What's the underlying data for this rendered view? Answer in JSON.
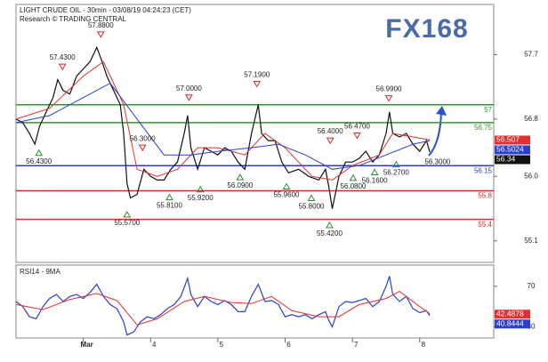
{
  "chart_data": [
    {
      "type": "line",
      "title": "LIGHT CRUDE OIL - 30min - 03/08/19 04:24:23 (CET)",
      "subtitle": "Research © TRADING CENTRAL",
      "logo": "FX168",
      "xlim": [
        2.0,
        9.1
      ],
      "ylim": [
        54.8,
        58.4
      ],
      "yticks": [
        55.1,
        {
          "value": 56,
          "label": "56.0"
        },
        56.8,
        57.7
      ],
      "series": [
        {
          "color": "#111111",
          "x": [
            2.0,
            2.1,
            2.2,
            2.28,
            2.35,
            2.45,
            2.55,
            2.62,
            2.7,
            2.8,
            2.9,
            3.0,
            3.1,
            3.2,
            3.28,
            3.35,
            3.45,
            3.55,
            3.6,
            3.65,
            3.7,
            3.8,
            3.9,
            4.0,
            4.1,
            4.2,
            4.3,
            4.4,
            4.5,
            4.55,
            4.6,
            4.7,
            4.8,
            4.9,
            5.0,
            5.1,
            5.2,
            5.3,
            5.4,
            5.5,
            5.6,
            5.65,
            5.75,
            5.85,
            5.95,
            6.05,
            6.2,
            6.35,
            6.5,
            6.6,
            6.65,
            6.7,
            6.8,
            6.9,
            7.0,
            7.1,
            7.2,
            7.3,
            7.4,
            7.5,
            7.55,
            7.6,
            7.7,
            7.8,
            7.9,
            8.0,
            8.1,
            8.15
          ],
          "values": [
            56.8,
            56.75,
            56.6,
            56.45,
            56.7,
            56.9,
            57.1,
            57.35,
            57.2,
            57.15,
            57.4,
            57.5,
            57.6,
            57.8,
            57.6,
            57.4,
            57.2,
            57.0,
            56.6,
            55.9,
            55.7,
            55.75,
            56.1,
            56.0,
            55.95,
            55.95,
            56.1,
            56.2,
            56.6,
            56.85,
            56.4,
            56.1,
            56.4,
            56.35,
            56.3,
            56.4,
            56.35,
            56.2,
            56.1,
            56.6,
            57.0,
            56.6,
            56.5,
            56.5,
            56.2,
            56.05,
            56.1,
            56.0,
            55.95,
            56.1,
            55.85,
            55.55,
            56.0,
            56.2,
            56.2,
            56.25,
            56.35,
            56.2,
            56.3,
            56.6,
            56.9,
            56.6,
            56.55,
            56.6,
            56.45,
            56.35,
            56.5,
            56.34
          ]
        },
        {
          "color": "#e03030",
          "x": [
            2.0,
            2.5,
            3.0,
            3.3,
            3.6,
            3.8,
            4.1,
            4.4,
            4.7,
            5.0,
            5.4,
            5.7,
            6.0,
            6.4,
            6.7,
            7.0,
            7.4,
            7.6,
            7.9,
            8.15
          ],
          "values": [
            56.8,
            56.95,
            57.4,
            57.6,
            57.0,
            56.1,
            56.0,
            56.1,
            56.4,
            56.4,
            56.3,
            56.6,
            56.4,
            56.0,
            55.95,
            56.15,
            56.3,
            56.6,
            56.55,
            56.51
          ]
        },
        {
          "color": "#2a3fd0",
          "x": [
            2.0,
            2.5,
            3.0,
            3.4,
            3.8,
            4.2,
            4.6,
            5.0,
            5.5,
            5.9,
            6.3,
            6.7,
            7.1,
            7.5,
            7.9,
            8.15
          ],
          "values": [
            56.75,
            56.85,
            57.1,
            57.3,
            56.8,
            56.3,
            56.3,
            56.35,
            56.4,
            56.45,
            56.3,
            56.1,
            56.15,
            56.3,
            56.45,
            56.5
          ]
        }
      ],
      "levels": [
        {
          "value": 57,
          "color": "#2e9a2e"
        },
        {
          "value": 56.75,
          "color": "#2e9a2e"
        },
        {
          "value": 56.15,
          "color": "#2a3fd0"
        },
        {
          "value": 55.8,
          "color": "#d42a2a"
        },
        {
          "value": 55.4,
          "color": "#d42a2a"
        }
      ],
      "last_values": [
        {
          "value": 56.507,
          "color": "#e03030"
        },
        {
          "value": 56.5024,
          "color": "#2a3fd0"
        },
        {
          "value": 56.34,
          "color": "#111111"
        }
      ],
      "annotations": [
        {
          "x": 2.69,
          "value": 57.43,
          "label": "57.4300",
          "marker": "down"
        },
        {
          "x": 3.26,
          "value": 57.88,
          "label": "57.8800",
          "marker": "down"
        },
        {
          "x": 2.34,
          "value": 56.43,
          "label": "56.4300",
          "marker": "up"
        },
        {
          "x": 3.65,
          "value": 55.57,
          "label": "55.5700",
          "marker": "up"
        },
        {
          "x": 3.88,
          "value": 56.3,
          "label": "56.3000",
          "marker": "down"
        },
        {
          "x": 4.28,
          "value": 55.81,
          "label": "55.8100",
          "marker": "up"
        },
        {
          "x": 4.57,
          "value": 57.0,
          "label": "57.0000",
          "marker": "down"
        },
        {
          "x": 4.74,
          "value": 55.92,
          "label": "55.9200",
          "marker": "up"
        },
        {
          "x": 5.33,
          "value": 56.09,
          "label": "56.0900",
          "marker": "up"
        },
        {
          "x": 5.58,
          "value": 57.19,
          "label": "57.1900",
          "marker": "down"
        },
        {
          "x": 6.02,
          "value": 55.96,
          "label": "55.9600",
          "marker": "up"
        },
        {
          "x": 6.39,
          "value": 55.8,
          "label": "55.8000",
          "marker": "up"
        },
        {
          "x": 6.67,
          "value": 56.4,
          "label": "56.4000",
          "marker": "down"
        },
        {
          "x": 6.66,
          "value": 55.42,
          "label": "55.4200",
          "marker": "up"
        },
        {
          "x": 7.07,
          "value": 56.47,
          "label": "56.4700",
          "marker": "down"
        },
        {
          "x": 7.01,
          "value": 56.08,
          "label": "56.0800",
          "marker": "up"
        },
        {
          "x": 7.54,
          "value": 56.99,
          "label": "56.9900",
          "marker": "down"
        },
        {
          "x": 7.33,
          "value": 56.16,
          "label": "56.1600",
          "marker": "up"
        },
        {
          "x": 7.65,
          "value": 56.27,
          "label": "56.2700",
          "marker": "up"
        },
        {
          "x": 8.16,
          "value": 56.3,
          "label": "56.3000"
        }
      ]
    },
    {
      "type": "line",
      "title": "RSI14 - 9MA",
      "xlim": [
        2.0,
        9.1
      ],
      "xticks": [
        {
          "value": 3,
          "label": "Mar"
        },
        4,
        5,
        6,
        7,
        8
      ],
      "ylim": [
        19,
        91
      ],
      "yticks": [
        30,
        70
      ],
      "series": [
        {
          "color": "#2a3fd0",
          "x": [
            2.0,
            2.1,
            2.2,
            2.3,
            2.4,
            2.5,
            2.6,
            2.7,
            2.8,
            2.9,
            3.0,
            3.1,
            3.2,
            3.3,
            3.4,
            3.5,
            3.6,
            3.65,
            3.75,
            3.85,
            3.95,
            4.05,
            4.15,
            4.25,
            4.35,
            4.45,
            4.55,
            4.6,
            4.7,
            4.8,
            4.9,
            5.0,
            5.1,
            5.2,
            5.3,
            5.4,
            5.5,
            5.6,
            5.7,
            5.8,
            5.9,
            6.0,
            6.1,
            6.2,
            6.3,
            6.4,
            6.5,
            6.6,
            6.65,
            6.7,
            6.8,
            6.9,
            7.0,
            7.1,
            7.2,
            7.3,
            7.4,
            7.5,
            7.55,
            7.6,
            7.7,
            7.8,
            7.9,
            8.0,
            8.1,
            8.15
          ],
          "values": [
            55,
            50,
            40,
            38,
            50,
            58,
            62,
            55,
            60,
            62,
            58,
            64,
            72,
            60,
            52,
            48,
            35,
            22,
            25,
            35,
            40,
            38,
            42,
            48,
            52,
            60,
            78,
            62,
            50,
            60,
            55,
            52,
            56,
            52,
            45,
            45,
            60,
            72,
            55,
            56,
            52,
            40,
            42,
            40,
            42,
            38,
            42,
            45,
            36,
            30,
            50,
            55,
            54,
            56,
            58,
            50,
            55,
            70,
            80,
            62,
            55,
            60,
            48,
            44,
            46,
            41
          ]
        },
        {
          "color": "#e03030",
          "x": [
            2.0,
            2.4,
            2.8,
            3.2,
            3.5,
            3.8,
            4.1,
            4.5,
            4.8,
            5.2,
            5.5,
            5.8,
            6.1,
            6.5,
            6.8,
            7.1,
            7.5,
            7.7,
            8.0,
            8.15
          ],
          "values": [
            52,
            47,
            57,
            63,
            56,
            32,
            38,
            55,
            60,
            54,
            53,
            60,
            46,
            40,
            40,
            52,
            58,
            65,
            50,
            43
          ]
        }
      ],
      "last_values": [
        {
          "value": 42.4878,
          "color": "#e03030"
        },
        {
          "value": 40.8444,
          "color": "#2a3fd0"
        }
      ]
    }
  ]
}
